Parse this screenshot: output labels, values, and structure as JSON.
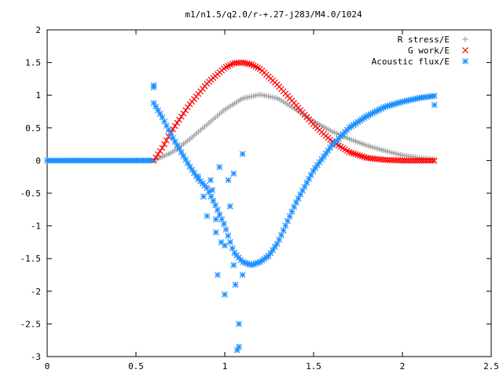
{
  "chart_data": {
    "type": "scatter",
    "title": "m1/n1.5/q2.0/r-+.27-j283/M4.0/1024",
    "xlabel": "",
    "ylabel": "",
    "xlim": [
      0,
      2.5
    ],
    "ylim": [
      -3,
      2
    ],
    "xticks": [
      "0",
      "0.5",
      "1",
      "1.5",
      "2",
      "2.5"
    ],
    "yticks": [
      "2",
      "1.5",
      "1",
      "0.5",
      "0",
      "-0.5",
      "-1",
      "-1.5",
      "-2",
      "-2.5",
      "-3"
    ],
    "legend_position": "top-right",
    "grid": false,
    "series": [
      {
        "name": "R stress/E",
        "marker": "+",
        "color": "#a0a0a0",
        "x": [
          0.6,
          0.7,
          0.8,
          0.9,
          1.0,
          1.1,
          1.2,
          1.3,
          1.4,
          1.5,
          1.6,
          1.7,
          1.8,
          1.9,
          2.0,
          2.1,
          2.18
        ],
        "y": [
          0.0,
          0.12,
          0.32,
          0.55,
          0.78,
          0.95,
          1.01,
          0.95,
          0.78,
          0.6,
          0.45,
          0.33,
          0.23,
          0.15,
          0.08,
          0.04,
          0.02
        ]
      },
      {
        "name": "G work/E",
        "marker": "x",
        "color": "#ff0000",
        "x": [
          0.6,
          0.65,
          0.7,
          0.8,
          0.9,
          1.0,
          1.05,
          1.1,
          1.15,
          1.2,
          1.3,
          1.4,
          1.5,
          1.6,
          1.7,
          1.8,
          1.9,
          2.0,
          2.1,
          2.18
        ],
        "y": [
          0.0,
          0.2,
          0.45,
          0.85,
          1.18,
          1.42,
          1.49,
          1.5,
          1.47,
          1.4,
          1.15,
          0.85,
          0.55,
          0.3,
          0.13,
          0.04,
          0.01,
          0.0,
          0.0,
          0.0
        ]
      },
      {
        "name": "Acoustic flux/E",
        "marker": "*",
        "color": "#1e90ff",
        "x": [
          0.6,
          0.65,
          0.7,
          0.75,
          0.8,
          0.85,
          0.9,
          0.95,
          1.0,
          1.05,
          1.1,
          1.15,
          1.2,
          1.25,
          1.3,
          1.35,
          1.4,
          1.5,
          1.6,
          1.7,
          1.8,
          1.9,
          2.0,
          2.1,
          2.18
        ],
        "y": [
          0.88,
          0.65,
          0.38,
          0.15,
          -0.08,
          -0.28,
          -0.42,
          -0.7,
          -1.0,
          -1.4,
          -1.55,
          -1.6,
          -1.55,
          -1.45,
          -1.25,
          -0.95,
          -0.65,
          -0.15,
          0.22,
          0.5,
          0.68,
          0.82,
          0.9,
          0.96,
          0.99
        ]
      },
      {
        "name": "",
        "marker": "*",
        "color": "#1e90ff",
        "x": [
          0.6,
          0.6,
          0.85,
          0.88,
          0.9,
          0.92,
          0.93,
          0.95,
          0.95,
          0.96,
          0.97,
          0.98,
          1.0,
          1.0,
          1.02,
          1.03,
          1.05,
          1.05,
          1.06,
          1.07,
          1.08,
          1.08,
          1.1,
          1.1,
          2.18
        ],
        "y": [
          1.15,
          1.12,
          -0.25,
          -0.55,
          -0.85,
          -0.3,
          -0.45,
          -1.1,
          -0.9,
          -1.75,
          -0.1,
          -1.25,
          -2.05,
          -1.3,
          -0.3,
          -0.7,
          -1.6,
          -0.2,
          -1.9,
          -2.9,
          -2.85,
          -2.5,
          0.1,
          -1.75,
          0.85
        ]
      }
    ]
  }
}
